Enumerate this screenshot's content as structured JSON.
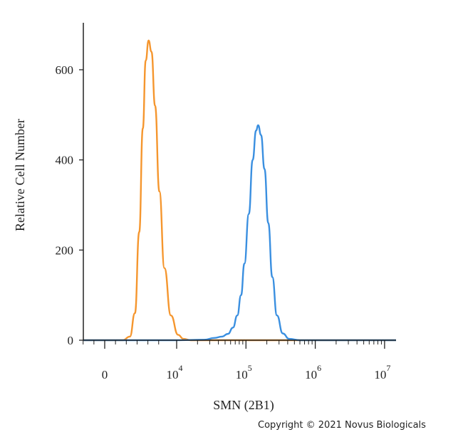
{
  "chart_data": {
    "type": "line",
    "xlabel": "SMN (2B1)",
    "ylabel": "Relative Cell Number",
    "x_scale": "biexponential",
    "ylim": [
      0,
      700
    ],
    "x_ticks": [
      {
        "value": 0,
        "base": "0",
        "exp": ""
      },
      {
        "value": 10000,
        "base": "10",
        "exp": "4"
      },
      {
        "value": 100000,
        "base": "10",
        "exp": "5"
      },
      {
        "value": 1000000,
        "base": "10",
        "exp": "6"
      },
      {
        "value": 10000000,
        "base": "10",
        "exp": "7"
      }
    ],
    "y_ticks": [
      "0",
      "200",
      "400",
      "600"
    ],
    "y_tick_values": [
      0,
      200,
      400,
      600
    ],
    "grid": false,
    "legend": "none",
    "series": [
      {
        "color": "#f5962e",
        "x": [
          0,
          2500,
          3500,
          4200,
          4800,
          5300,
          5700,
          6100,
          6500,
          7000,
          7600,
          8300,
          9200,
          10500,
          12500,
          16000,
          25000,
          60000,
          150000,
          400000,
          1000000,
          10000000
        ],
        "y": [
          0,
          0,
          8,
          60,
          240,
          470,
          620,
          665,
          640,
          520,
          330,
          160,
          55,
          12,
          3,
          0,
          0,
          0,
          0,
          0,
          0,
          0
        ]
      },
      {
        "color": "#3a8fe0",
        "x": [
          0,
          10000,
          25000,
          35000,
          45000,
          55000,
          65000,
          75000,
          85000,
          95000,
          110000,
          125000,
          140000,
          150000,
          165000,
          185000,
          210000,
          240000,
          280000,
          340000,
          420000,
          600000,
          1000000,
          10000000
        ],
        "y": [
          0,
          0,
          1,
          5,
          8,
          14,
          28,
          55,
          100,
          170,
          280,
          400,
          465,
          477,
          455,
          380,
          260,
          140,
          55,
          15,
          3,
          0,
          0,
          0
        ]
      }
    ]
  },
  "copyright": "Copyright © 2021 Novus Biologicals"
}
